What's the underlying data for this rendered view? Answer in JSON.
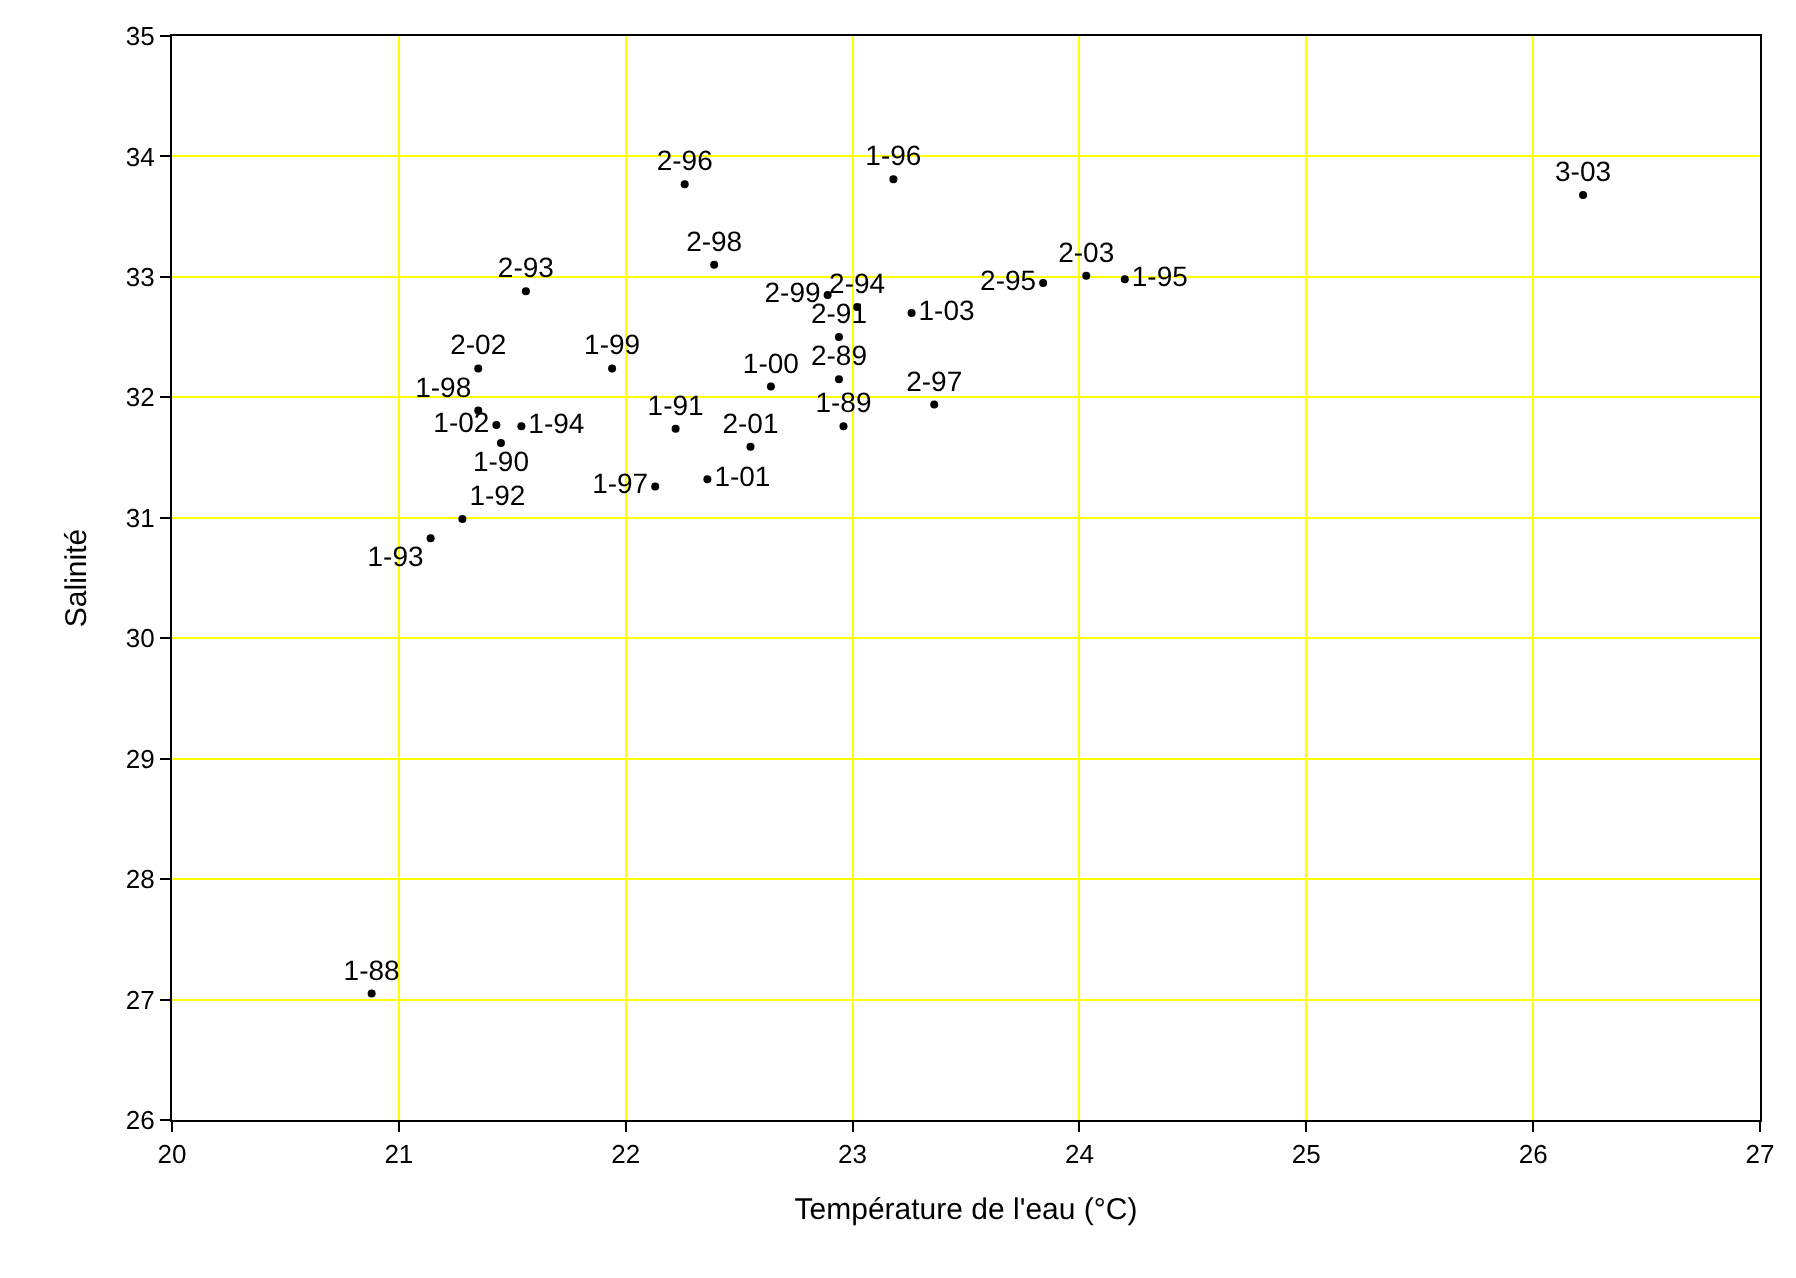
{
  "chart_data": {
    "type": "scatter",
    "xlabel": "Température de l'eau (°C)",
    "ylabel": "Salinité",
    "marker": "circle",
    "grid": true,
    "legend": false,
    "xlim": [
      20,
      27
    ],
    "xticks": [
      20,
      21,
      22,
      23,
      24,
      25,
      26,
      27
    ],
    "ylim": [
      26,
      35
    ],
    "yticks": [
      26,
      27,
      28,
      29,
      30,
      31,
      32,
      33,
      34,
      35
    ],
    "series": [
      {
        "color": "#000000",
        "x": [
          22.26,
          23.18,
          26.22,
          22.39,
          21.56,
          22.89,
          23.02,
          23.26,
          23.84,
          24.03,
          24.2,
          22.94,
          22.94,
          22.64,
          23.36,
          22.96,
          22.22,
          22.55,
          22.36,
          22.13,
          21.94,
          21.35,
          21.35,
          21.43,
          21.54,
          21.45,
          21.28,
          21.14,
          20.88
        ],
        "values": [
          33.77,
          33.81,
          33.68,
          33.1,
          32.88,
          32.85,
          32.75,
          32.7,
          32.95,
          33.01,
          32.98,
          32.5,
          32.15,
          32.09,
          31.94,
          31.76,
          31.74,
          31.59,
          31.32,
          31.26,
          32.24,
          32.24,
          31.89,
          31.77,
          31.76,
          31.62,
          30.99,
          30.83,
          27.05
        ],
        "value_labels": [
          "2-96",
          "1-96",
          "3-03",
          "2-98",
          "2-93",
          "2-99",
          "2-94",
          "1-03",
          "2-95",
          "2-03",
          "1-95",
          "2-91",
          "2-89",
          "1-00",
          "2-97",
          "1-89",
          "1-91",
          "2-01",
          "1-01",
          "1-97",
          "1-99",
          "2-02",
          "1-98",
          "1-02",
          "1-94",
          "1-90",
          "1-92",
          "1-93",
          "1-88"
        ]
      }
    ]
  }
}
